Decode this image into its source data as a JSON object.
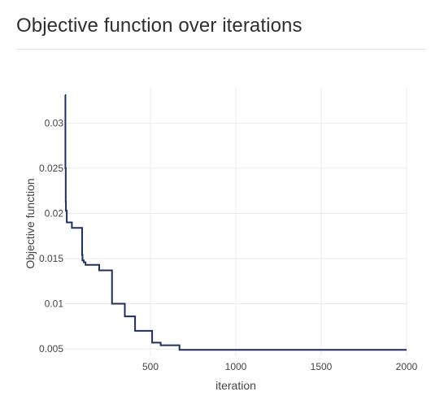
{
  "page": {
    "title": "Objective function over iterations"
  },
  "chart_data": {
    "type": "line",
    "line_shape": "step",
    "xlabel": "iteration",
    "ylabel": "Objective function",
    "xlim": [
      0,
      2000
    ],
    "ylim": [
      0.0042,
      0.0339
    ],
    "xticks": [
      500,
      1000,
      1500,
      2000
    ],
    "xtick_labels": [
      "500",
      "1000",
      "1500",
      "2000"
    ],
    "yticks": [
      0.005,
      0.01,
      0.015,
      0.02,
      0.025,
      0.03
    ],
    "ytick_labels": [
      "0.005",
      "0.01",
      "0.015",
      "0.02",
      "0.025",
      "0.03"
    ],
    "grid": true,
    "line_color": "#1f2f63",
    "series": [
      {
        "x": [
          0,
          2,
          4,
          5,
          10,
          40,
          100,
          102,
          110,
          120,
          200,
          265,
          275,
          350,
          400,
          410,
          510,
          560,
          670,
          2000
        ],
        "values": [
          0.0331,
          0.025,
          0.0213,
          0.0203,
          0.019,
          0.0184,
          0.0154,
          0.0148,
          0.0146,
          0.0143,
          0.0137,
          0.0137,
          0.01,
          0.0086,
          0.0086,
          0.007,
          0.0057,
          0.0054,
          0.0049,
          0.0049
        ]
      }
    ]
  }
}
